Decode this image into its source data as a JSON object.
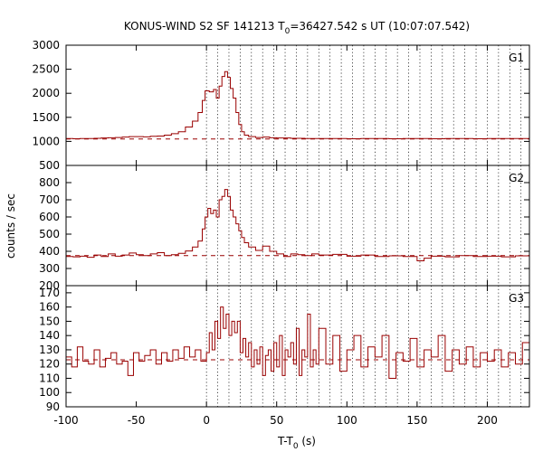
{
  "title": {
    "prefix": "KONUS-WIND S2 SF 141213 T",
    "sub": "0",
    "suffix": "=36427.542 s UT (10:07:07.542)"
  },
  "colors": {
    "trace": "#990000",
    "background": "#990000",
    "frame": "#000000",
    "markers": "#000000"
  },
  "chart_data": {
    "type": "line",
    "line_style": "step",
    "ylabel": "counts / sec",
    "xlabel": {
      "text": "T-T",
      "sub": "0",
      "unit": " (s)"
    },
    "x_range": [
      -100,
      230
    ],
    "x_ticks": [
      -100,
      -50,
      0,
      50,
      100,
      150,
      200
    ],
    "x_tick_labels": [
      "-100",
      "-50",
      "0",
      "50",
      "100",
      "150",
      "200"
    ],
    "vertical_markers": [
      0,
      8,
      16,
      24,
      32,
      40,
      48,
      56,
      64,
      72,
      80,
      88,
      96,
      104,
      112,
      120,
      128,
      136,
      144,
      152,
      160,
      168,
      176,
      184,
      192,
      200,
      208,
      216,
      224
    ],
    "panels": [
      {
        "name": "G1",
        "ylim": [
          500,
          3000
        ],
        "y_ticks": [
          500,
          1000,
          1500,
          2000,
          2500,
          3000
        ],
        "y_tick_labels": [
          "500",
          "1000",
          "1500",
          "2000",
          "2500",
          "3000"
        ],
        "background_level": 1050,
        "points": [
          [
            -100,
            1060
          ],
          [
            -95,
            1055
          ],
          [
            -90,
            1060
          ],
          [
            -85,
            1058
          ],
          [
            -80,
            1065
          ],
          [
            -75,
            1070
          ],
          [
            -70,
            1075
          ],
          [
            -65,
            1080
          ],
          [
            -60,
            1090
          ],
          [
            -55,
            1100
          ],
          [
            -50,
            1100
          ],
          [
            -45,
            1095
          ],
          [
            -40,
            1105
          ],
          [
            -35,
            1110
          ],
          [
            -30,
            1130
          ],
          [
            -25,
            1160
          ],
          [
            -20,
            1200
          ],
          [
            -15,
            1300
          ],
          [
            -10,
            1420
          ],
          [
            -6,
            1600
          ],
          [
            -3,
            1850
          ],
          [
            -1,
            2050
          ],
          [
            2,
            2030
          ],
          [
            5,
            2080
          ],
          [
            7,
            1900
          ],
          [
            9,
            2150
          ],
          [
            11,
            2350
          ],
          [
            13,
            2450
          ],
          [
            15,
            2330
          ],
          [
            17,
            2100
          ],
          [
            19,
            1900
          ],
          [
            21,
            1600
          ],
          [
            23,
            1350
          ],
          [
            25,
            1200
          ],
          [
            27,
            1130
          ],
          [
            30,
            1100
          ],
          [
            35,
            1080
          ],
          [
            40,
            1090
          ],
          [
            45,
            1075
          ],
          [
            50,
            1070
          ],
          [
            60,
            1065
          ],
          [
            70,
            1060
          ],
          [
            80,
            1058
          ],
          [
            90,
            1060
          ],
          [
            100,
            1055
          ],
          [
            110,
            1060
          ],
          [
            120,
            1058
          ],
          [
            130,
            1055
          ],
          [
            140,
            1060
          ],
          [
            150,
            1058
          ],
          [
            160,
            1055
          ],
          [
            170,
            1060
          ],
          [
            180,
            1058
          ],
          [
            190,
            1055
          ],
          [
            200,
            1060
          ],
          [
            210,
            1058
          ],
          [
            220,
            1060
          ],
          [
            230,
            1062
          ]
        ]
      },
      {
        "name": "G2",
        "ylim": [
          200,
          900
        ],
        "y_ticks": [
          200,
          300,
          400,
          500,
          600,
          700,
          800
        ],
        "y_tick_labels": [
          "200",
          "300",
          "400",
          "500",
          "600",
          "700",
          "800"
        ],
        "background_level": 375,
        "points": [
          [
            -100,
            370
          ],
          [
            -95,
            368
          ],
          [
            -90,
            372
          ],
          [
            -85,
            365
          ],
          [
            -80,
            378
          ],
          [
            -75,
            370
          ],
          [
            -70,
            385
          ],
          [
            -65,
            372
          ],
          [
            -60,
            378
          ],
          [
            -55,
            390
          ],
          [
            -50,
            380
          ],
          [
            -45,
            375
          ],
          [
            -40,
            385
          ],
          [
            -35,
            392
          ],
          [
            -30,
            375
          ],
          [
            -25,
            380
          ],
          [
            -20,
            388
          ],
          [
            -15,
            402
          ],
          [
            -10,
            425
          ],
          [
            -6,
            460
          ],
          [
            -3,
            530
          ],
          [
            -1,
            600
          ],
          [
            1,
            650
          ],
          [
            3,
            620
          ],
          [
            5,
            640
          ],
          [
            7,
            600
          ],
          [
            9,
            700
          ],
          [
            11,
            720
          ],
          [
            13,
            760
          ],
          [
            15,
            720
          ],
          [
            17,
            640
          ],
          [
            19,
            600
          ],
          [
            21,
            560
          ],
          [
            23,
            520
          ],
          [
            25,
            480
          ],
          [
            27,
            450
          ],
          [
            30,
            425
          ],
          [
            35,
            405
          ],
          [
            40,
            430
          ],
          [
            45,
            400
          ],
          [
            50,
            385
          ],
          [
            55,
            370
          ],
          [
            60,
            385
          ],
          [
            65,
            380
          ],
          [
            70,
            375
          ],
          [
            75,
            385
          ],
          [
            80,
            378
          ],
          [
            90,
            382
          ],
          [
            100,
            372
          ],
          [
            110,
            378
          ],
          [
            120,
            370
          ],
          [
            130,
            374
          ],
          [
            140,
            370
          ],
          [
            150,
            345
          ],
          [
            155,
            360
          ],
          [
            160,
            372
          ],
          [
            170,
            368
          ],
          [
            180,
            375
          ],
          [
            190,
            370
          ],
          [
            200,
            372
          ],
          [
            210,
            368
          ],
          [
            220,
            374
          ],
          [
            230,
            372
          ]
        ]
      },
      {
        "name": "G3",
        "ylim": [
          90,
          175
        ],
        "y_ticks": [
          90,
          100,
          110,
          120,
          130,
          140,
          150,
          160,
          170
        ],
        "y_tick_labels": [
          "90",
          "100",
          "110",
          "120",
          "130",
          "140",
          "150",
          "160",
          "170"
        ],
        "background_level": 123,
        "points": [
          [
            -100,
            125
          ],
          [
            -96,
            118
          ],
          [
            -92,
            132
          ],
          [
            -88,
            122
          ],
          [
            -84,
            120
          ],
          [
            -80,
            130
          ],
          [
            -76,
            118
          ],
          [
            -72,
            124
          ],
          [
            -68,
            128
          ],
          [
            -64,
            120
          ],
          [
            -60,
            122
          ],
          [
            -56,
            112
          ],
          [
            -52,
            128
          ],
          [
            -48,
            122
          ],
          [
            -44,
            126
          ],
          [
            -40,
            130
          ],
          [
            -36,
            120
          ],
          [
            -32,
            128
          ],
          [
            -28,
            122
          ],
          [
            -24,
            130
          ],
          [
            -20,
            124
          ],
          [
            -16,
            132
          ],
          [
            -12,
            125
          ],
          [
            -8,
            130
          ],
          [
            -4,
            122
          ],
          [
            0,
            128
          ],
          [
            2,
            142
          ],
          [
            4,
            130
          ],
          [
            6,
            150
          ],
          [
            8,
            138
          ],
          [
            10,
            160
          ],
          [
            12,
            145
          ],
          [
            14,
            155
          ],
          [
            16,
            140
          ],
          [
            18,
            150
          ],
          [
            20,
            142
          ],
          [
            22,
            150
          ],
          [
            24,
            128
          ],
          [
            26,
            138
          ],
          [
            28,
            125
          ],
          [
            30,
            135
          ],
          [
            32,
            118
          ],
          [
            34,
            130
          ],
          [
            36,
            120
          ],
          [
            38,
            132
          ],
          [
            40,
            112
          ],
          [
            42,
            126
          ],
          [
            44,
            130
          ],
          [
            46,
            115
          ],
          [
            48,
            135
          ],
          [
            50,
            118
          ],
          [
            52,
            140
          ],
          [
            54,
            112
          ],
          [
            56,
            130
          ],
          [
            58,
            125
          ],
          [
            60,
            135
          ],
          [
            62,
            120
          ],
          [
            64,
            145
          ],
          [
            66,
            112
          ],
          [
            68,
            130
          ],
          [
            70,
            125
          ],
          [
            72,
            155
          ],
          [
            74,
            118
          ],
          [
            76,
            130
          ],
          [
            78,
            120
          ],
          [
            80,
            145
          ],
          [
            85,
            120
          ],
          [
            90,
            140
          ],
          [
            95,
            115
          ],
          [
            100,
            130
          ],
          [
            105,
            140
          ],
          [
            110,
            118
          ],
          [
            115,
            132
          ],
          [
            120,
            125
          ],
          [
            125,
            140
          ],
          [
            130,
            110
          ],
          [
            135,
            128
          ],
          [
            140,
            122
          ],
          [
            145,
            138
          ],
          [
            150,
            118
          ],
          [
            155,
            130
          ],
          [
            160,
            125
          ],
          [
            165,
            140
          ],
          [
            170,
            115
          ],
          [
            175,
            130
          ],
          [
            180,
            120
          ],
          [
            185,
            132
          ],
          [
            190,
            118
          ],
          [
            195,
            128
          ],
          [
            200,
            122
          ],
          [
            205,
            130
          ],
          [
            210,
            118
          ],
          [
            215,
            128
          ],
          [
            220,
            120
          ],
          [
            225,
            135
          ],
          [
            230,
            125
          ]
        ]
      }
    ]
  }
}
